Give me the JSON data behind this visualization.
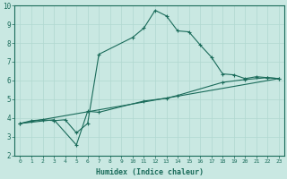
{
  "xlabel": "Humidex (Indice chaleur)",
  "xlim": [
    -0.5,
    23.5
  ],
  "ylim": [
    2,
    10
  ],
  "xticks": [
    0,
    1,
    2,
    3,
    4,
    5,
    6,
    7,
    8,
    9,
    10,
    11,
    12,
    13,
    14,
    15,
    16,
    17,
    18,
    19,
    20,
    21,
    22,
    23
  ],
  "yticks": [
    2,
    3,
    4,
    5,
    6,
    7,
    8,
    9,
    10
  ],
  "background_color": "#c9e8e2",
  "line_color": "#1a6b5a",
  "grid_color": "#b0d8d0",
  "line1_x": [
    0,
    1,
    2,
    3,
    4,
    5,
    6,
    7,
    10,
    11,
    12,
    13,
    14,
    15,
    16,
    17,
    18,
    19,
    20,
    21,
    22,
    23
  ],
  "line1_y": [
    3.7,
    3.85,
    3.9,
    3.85,
    3.9,
    3.2,
    3.7,
    7.4,
    8.3,
    8.8,
    9.75,
    9.45,
    8.65,
    8.6,
    7.9,
    7.25,
    6.35,
    6.3,
    6.1,
    6.2,
    6.15,
    6.1
  ],
  "line2_x": [
    0,
    3,
    5,
    6,
    7,
    11,
    13,
    14,
    18,
    20,
    22,
    23
  ],
  "line2_y": [
    3.7,
    3.9,
    2.55,
    4.35,
    4.3,
    4.9,
    5.05,
    5.2,
    5.9,
    6.05,
    6.15,
    6.1
  ],
  "line3_x": [
    0,
    23
  ],
  "line3_y": [
    3.7,
    6.1
  ]
}
